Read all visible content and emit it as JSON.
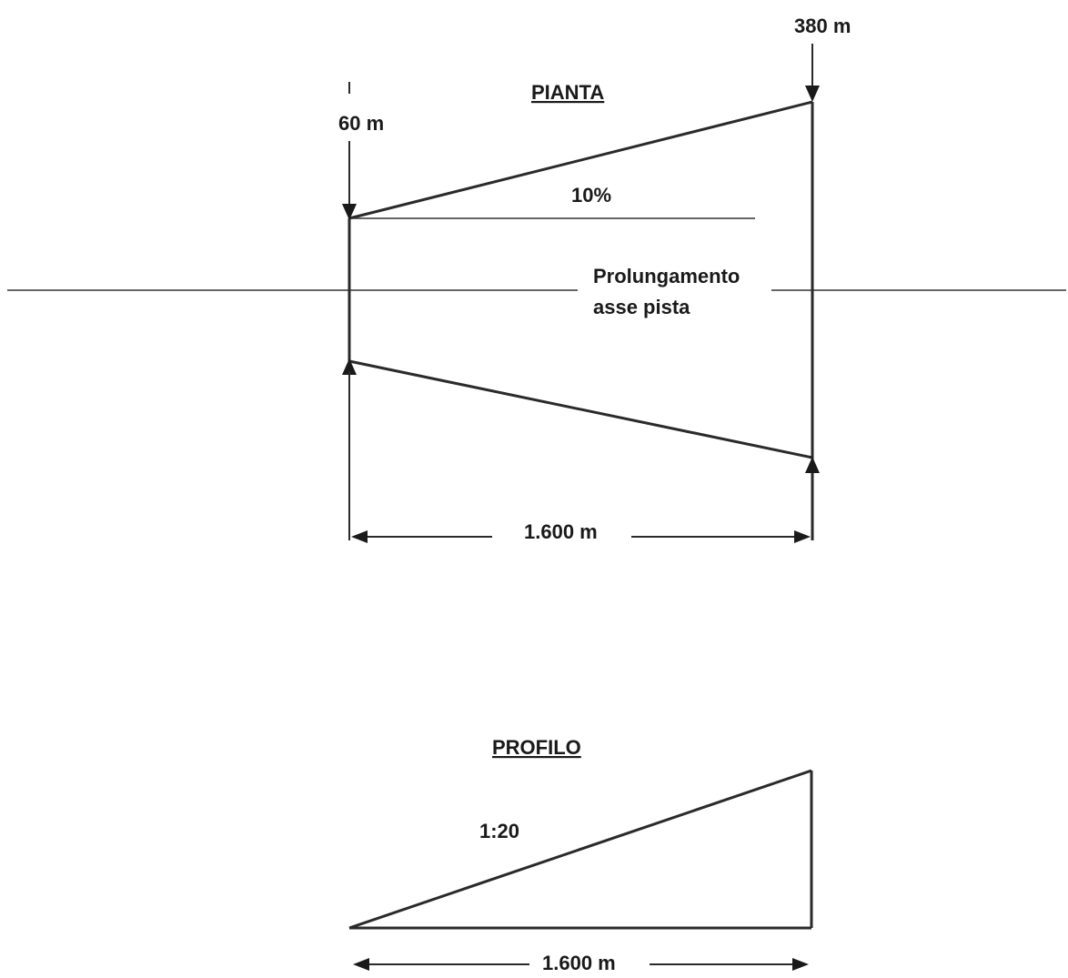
{
  "plan": {
    "title": "PIANTA",
    "inner_width_label": "60 m",
    "outer_width_label": "380 m",
    "divergence_label": "10%",
    "centerline_label_line1": "Prolungamento",
    "centerline_label_line2": "asse pista",
    "length_label": "1.600 m"
  },
  "profile": {
    "title": "PROFILO",
    "slope_label": "1:20",
    "length_label": "1.600 m"
  }
}
